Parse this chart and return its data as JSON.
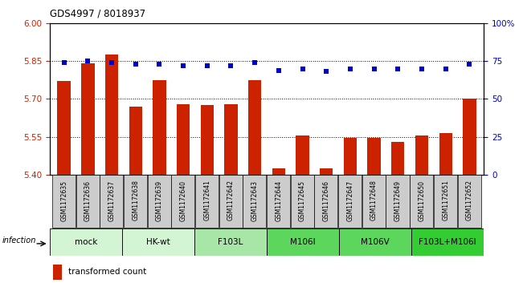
{
  "title": "GDS4997 / 8018937",
  "samples": [
    "GSM1172635",
    "GSM1172636",
    "GSM1172637",
    "GSM1172638",
    "GSM1172639",
    "GSM1172640",
    "GSM1172641",
    "GSM1172642",
    "GSM1172643",
    "GSM1172644",
    "GSM1172645",
    "GSM1172646",
    "GSM1172647",
    "GSM1172648",
    "GSM1172649",
    "GSM1172650",
    "GSM1172651",
    "GSM1172652"
  ],
  "bar_values": [
    5.77,
    5.84,
    5.875,
    5.67,
    5.775,
    5.68,
    5.675,
    5.68,
    5.775,
    5.425,
    5.555,
    5.425,
    5.545,
    5.545,
    5.53,
    5.555,
    5.565,
    5.7
  ],
  "percentile_values": [
    74,
    75,
    74,
    73,
    73,
    72,
    72,
    72,
    74,
    69,
    70,
    68,
    70,
    70,
    70,
    70,
    70,
    73
  ],
  "groups": [
    {
      "label": "mock",
      "start": 0,
      "end": 3,
      "color": "#d4f5d4"
    },
    {
      "label": "HK-wt",
      "start": 3,
      "end": 6,
      "color": "#d4f5d4"
    },
    {
      "label": "F103L",
      "start": 6,
      "end": 9,
      "color": "#a8e6a8"
    },
    {
      "label": "M106I",
      "start": 9,
      "end": 12,
      "color": "#5cd65c"
    },
    {
      "label": "M106V",
      "start": 12,
      "end": 15,
      "color": "#5cd65c"
    },
    {
      "label": "F103L+M106I",
      "start": 15,
      "end": 18,
      "color": "#33cc33"
    }
  ],
  "ylim_left": [
    5.4,
    6.0
  ],
  "ylim_right": [
    0,
    100
  ],
  "yticks_left": [
    5.4,
    5.55,
    5.7,
    5.85,
    6.0
  ],
  "yticks_right": [
    0,
    25,
    50,
    75,
    100
  ],
  "bar_color": "#cc2200",
  "dot_color": "#0000cc",
  "bar_width": 0.55,
  "sample_box_color": "#cccccc",
  "grid_color": "black",
  "grid_linestyle": ":",
  "grid_linewidth": 0.7
}
